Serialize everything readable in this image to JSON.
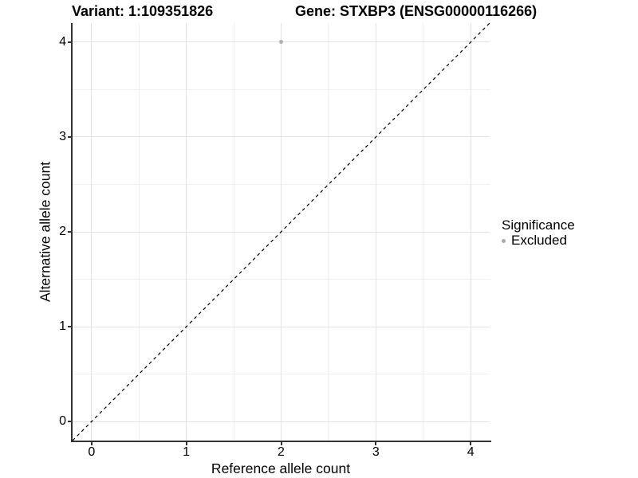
{
  "header": {
    "variant_title": "Variant: 1:109351826",
    "gene_title": "Gene: STXBP3 (ENSG00000116266)"
  },
  "legend": {
    "title": "Significance",
    "items": [
      {
        "label": "Excluded",
        "color": "#a9a9a9"
      }
    ]
  },
  "colors": {
    "grid_major": "#e3e3e3",
    "grid_minor": "#f0f0f0",
    "axis_line": "#333333",
    "reference_line": "#000000",
    "point_excluded": "#aeaeae"
  },
  "chart_data": {
    "type": "scatter",
    "title_left": "Variant: 1:109351826",
    "title_right": "Gene: STXBP3 (ENSG00000116266)",
    "xlabel": "Reference allele count",
    "ylabel": "Alternative allele count",
    "xlim": [
      -0.2,
      4.2
    ],
    "ylim": [
      -0.2,
      4.2
    ],
    "x_ticks": [
      0,
      1,
      2,
      3,
      4
    ],
    "y_ticks": [
      0,
      1,
      2,
      3,
      4
    ],
    "x_minor": [
      0.5,
      1.5,
      2.5,
      3.5
    ],
    "y_minor": [
      0.5,
      1.5,
      2.5,
      3.5
    ],
    "grid": "major+minor",
    "legend_position": "right",
    "legend_title": "Significance",
    "series": [
      {
        "name": "Excluded",
        "color": "#aeaeae",
        "points": [
          {
            "x": 2,
            "y": 4
          }
        ]
      }
    ],
    "reference_line": {
      "kind": "identity",
      "slope": 1,
      "intercept": 0,
      "style": "dashed",
      "color": "#000000"
    }
  }
}
